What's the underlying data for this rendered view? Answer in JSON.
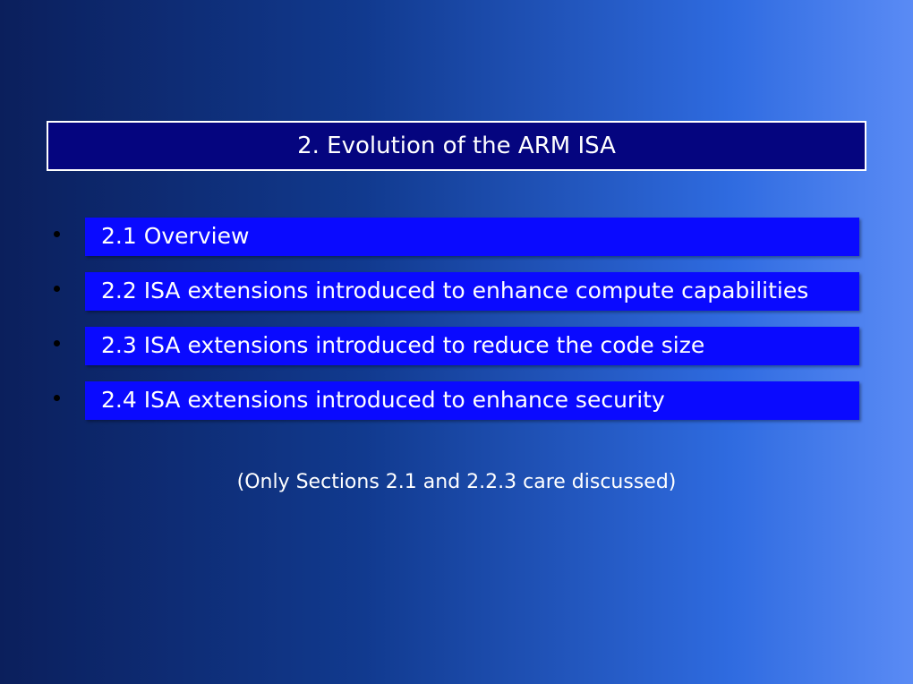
{
  "colors": {
    "background_gradient_start": "#0b1f5c",
    "background_gradient_end": "#5a8bf5",
    "title_box_bg": "#05057f",
    "title_box_border": "#ffffff",
    "item_box_bg": "#0a0aff",
    "bullet_color": "#000000",
    "text_color": "#ffffff"
  },
  "title": "2. Evolution of the ARM ISA",
  "items": [
    "2.1 Overview",
    "2.2 ISA extensions introduced to enhance compute capabilities",
    "2.3 ISA extensions introduced to reduce the code size",
    "2.4 ISA extensions introduced to enhance security"
  ],
  "note": "(Only Sections 2.1 and 2.2.3 care discussed)"
}
